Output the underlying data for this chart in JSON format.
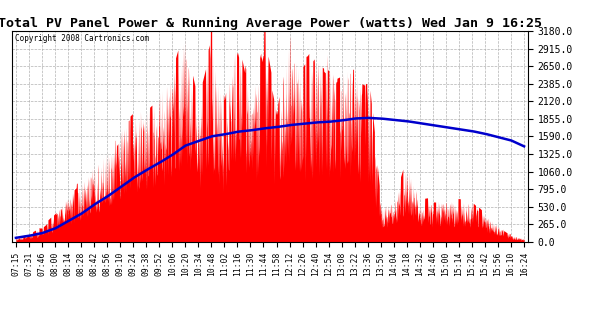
{
  "title": "Total PV Panel Power & Running Average Power (watts) Wed Jan 9 16:25",
  "copyright": "Copyright 2008 Cartronics.com",
  "background_color": "#ffffff",
  "bar_color": "#ff0000",
  "line_color": "#0000cc",
  "grid_color": "#aaaaaa",
  "ylim": [
    0,
    3180
  ],
  "yticks": [
    0.0,
    265.0,
    530.0,
    795.0,
    1060.0,
    1325.0,
    1590.0,
    1855.0,
    2120.0,
    2385.0,
    2650.0,
    2915.0,
    3180.0
  ],
  "x_labels": [
    "07:15",
    "07:31",
    "07:46",
    "08:00",
    "08:14",
    "08:28",
    "08:42",
    "08:56",
    "09:10",
    "09:24",
    "09:38",
    "09:52",
    "10:06",
    "10:20",
    "10:34",
    "10:48",
    "11:02",
    "11:16",
    "11:30",
    "11:44",
    "11:58",
    "12:12",
    "12:26",
    "12:40",
    "12:54",
    "13:08",
    "13:22",
    "13:36",
    "13:50",
    "14:04",
    "14:18",
    "14:32",
    "14:46",
    "15:00",
    "15:14",
    "15:28",
    "15:42",
    "15:56",
    "16:10",
    "16:24"
  ],
  "pv_envelope": [
    60,
    120,
    220,
    400,
    700,
    900,
    1150,
    1350,
    1700,
    1900,
    2100,
    2300,
    2500,
    3150,
    2200,
    3000,
    2000,
    3180,
    2200,
    3100,
    2000,
    3180,
    2500,
    2800,
    2600,
    2700,
    2600,
    2500,
    550,
    600,
    1200,
    600,
    630,
    620,
    600,
    580,
    400,
    250,
    100,
    50
  ],
  "ra_values": [
    60,
    90,
    130,
    200,
    310,
    420,
    560,
    680,
    820,
    960,
    1080,
    1190,
    1310,
    1450,
    1520,
    1590,
    1620,
    1660,
    1680,
    1710,
    1730,
    1760,
    1780,
    1800,
    1810,
    1830,
    1860,
    1870,
    1860,
    1840,
    1820,
    1790,
    1760,
    1730,
    1700,
    1670,
    1630,
    1580,
    1530,
    1440
  ]
}
